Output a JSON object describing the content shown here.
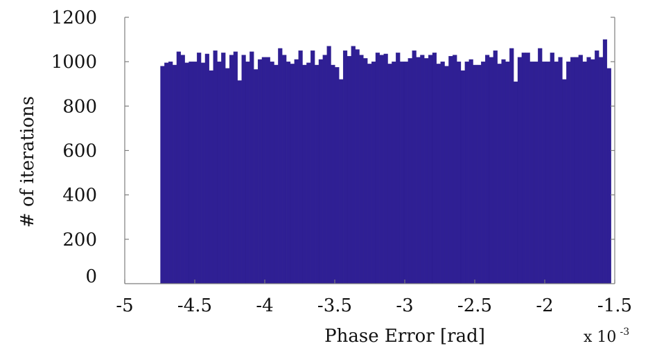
{
  "chart_data": {
    "type": "bar",
    "title": "",
    "xlabel": "Phase Error [rad]",
    "ylabel": "# of iterations",
    "x_exponent_label": "x 10",
    "x_exponent_power": "-3",
    "xlim": [
      -5,
      -1.5
    ],
    "ylim": [
      0,
      1200
    ],
    "xticks": [
      "-5",
      "-4.5",
      "-4",
      "-3.5",
      "-3",
      "-2.5",
      "-2",
      "-1.5"
    ],
    "yticks": [
      "0",
      "200",
      "400",
      "600",
      "800",
      "1000",
      "1200"
    ],
    "bin_start": -4.745,
    "bin_width": 0.029,
    "values": [
      980,
      995,
      1000,
      985,
      1045,
      1030,
      995,
      1000,
      1000,
      1040,
      995,
      1035,
      960,
      1050,
      1000,
      1040,
      970,
      1030,
      1045,
      915,
      1030,
      1000,
      1045,
      965,
      1010,
      1020,
      1020,
      1000,
      985,
      1060,
      1030,
      1000,
      990,
      1010,
      1050,
      985,
      995,
      1050,
      985,
      1010,
      1030,
      1070,
      985,
      975,
      920,
      1050,
      1025,
      1070,
      1055,
      1030,
      1015,
      990,
      1000,
      1040,
      1030,
      1035,
      990,
      1000,
      1040,
      1000,
      1000,
      1015,
      1050,
      1020,
      1030,
      1015,
      1030,
      1040,
      990,
      1000,
      980,
      1025,
      1030,
      1000,
      960,
      1000,
      1010,
      985,
      985,
      1000,
      1030,
      1020,
      1050,
      990,
      1010,
      1000,
      1060,
      910,
      1020,
      1040,
      1040,
      1000,
      1000,
      1060,
      1000,
      1000,
      1040,
      1000,
      1020,
      920,
      1000,
      1020,
      1020,
      1030,
      1000,
      1020,
      1010,
      1050,
      1020,
      1100,
      970
    ],
    "bar_color": "#2f1f94",
    "grid": false,
    "legend": "none"
  }
}
